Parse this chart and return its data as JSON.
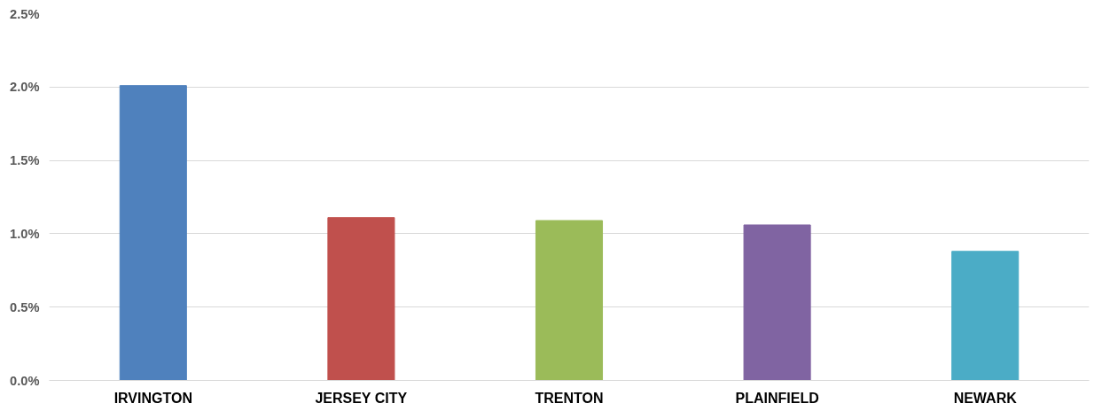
{
  "chart_data": {
    "type": "bar",
    "categories": [
      "IRVINGTON",
      "JERSEY CITY",
      "TRENTON",
      "PLAINFIELD",
      "NEWARK"
    ],
    "values": [
      2.01,
      1.11,
      1.09,
      1.06,
      0.88
    ],
    "colors": [
      "#4f81bd",
      "#c0504d",
      "#9bbb59",
      "#8064a2",
      "#4bacc6"
    ],
    "ylim": [
      0,
      2.5
    ],
    "yticks": [
      {
        "value": 0,
        "label": "0.0%"
      },
      {
        "value": 0.5,
        "label": "0.5%"
      },
      {
        "value": 1,
        "label": "1.0%"
      },
      {
        "value": 1.5,
        "label": "1.5%"
      },
      {
        "value": 2,
        "label": "2.0%"
      },
      {
        "value": 2.5,
        "label": "2.5%"
      }
    ],
    "grid": "y"
  }
}
